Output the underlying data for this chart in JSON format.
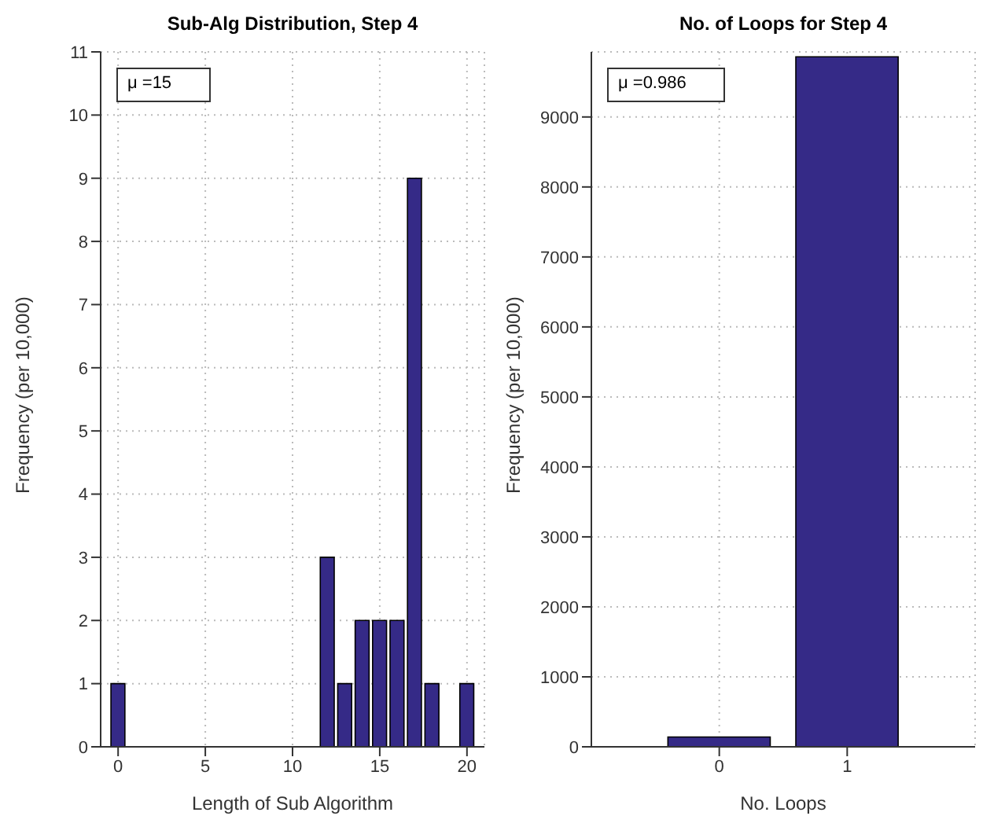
{
  "chart_data": [
    {
      "type": "bar",
      "title": "Sub-Alg Distribution, Step 4",
      "xlabel": "Length of Sub Algorithm",
      "ylabel": "Frequency (per 10,000)",
      "annotations": [
        "μ =15"
      ],
      "x": [
        0,
        1,
        2,
        3,
        4,
        5,
        6,
        7,
        8,
        9,
        10,
        11,
        12,
        13,
        14,
        15,
        16,
        17,
        18,
        19,
        20
      ],
      "values": [
        1,
        0,
        0,
        0,
        0,
        0,
        0,
        0,
        0,
        0,
        0,
        0,
        3,
        1,
        2,
        2,
        2,
        9,
        1,
        0,
        1
      ],
      "color": "#352a87",
      "xlim": [
        -1,
        21
      ],
      "xticks": [
        0,
        5,
        10,
        15,
        20
      ],
      "ylim": [
        0,
        11
      ],
      "yticks": [
        0,
        1,
        2,
        3,
        4,
        5,
        6,
        7,
        8,
        9,
        10,
        11
      ],
      "grid": true
    },
    {
      "type": "bar",
      "title": "No. of Loops for Step 4",
      "xlabel": "No. Loops",
      "ylabel": "Frequency (per 10,000)",
      "annotations": [
        "μ =0.986"
      ],
      "x": [
        0,
        1
      ],
      "values": [
        140,
        9860
      ],
      "color": "#352a87",
      "xlim": [
        -1,
        2
      ],
      "xticks": [
        0,
        1
      ],
      "ylim": [
        0,
        9930
      ],
      "yticks": [
        0,
        1000,
        2000,
        3000,
        4000,
        5000,
        6000,
        7000,
        8000,
        9000
      ],
      "grid": true
    }
  ]
}
